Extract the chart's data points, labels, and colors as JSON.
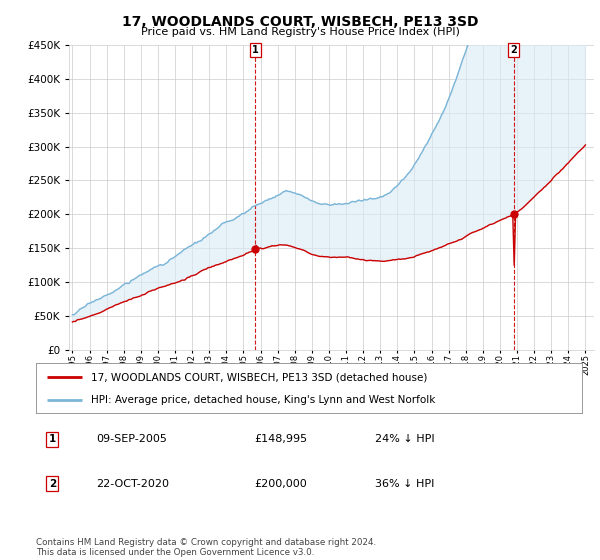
{
  "title": "17, WOODLANDS COURT, WISBECH, PE13 3SD",
  "subtitle": "Price paid vs. HM Land Registry's House Price Index (HPI)",
  "footnote": "Contains HM Land Registry data © Crown copyright and database right 2024.\nThis data is licensed under the Open Government Licence v3.0.",
  "legend_line1": "17, WOODLANDS COURT, WISBECH, PE13 3SD (detached house)",
  "legend_line2": "HPI: Average price, detached house, King's Lynn and West Norfolk",
  "sale1_date": "09-SEP-2005",
  "sale1_price": "£148,995",
  "sale1_hpi": "24% ↓ HPI",
  "sale2_date": "22-OCT-2020",
  "sale2_price": "£200,000",
  "sale2_hpi": "36% ↓ HPI",
  "sale1_year": 2005.7,
  "sale2_year": 2020.8,
  "sale1_price_val": 148995,
  "sale2_price_val": 200000,
  "hpi_color": "#7ab5d8",
  "price_color": "#cc0000",
  "fill_color": "#daeaf5",
  "background_color": "#ffffff",
  "grid_color": "#cccccc",
  "ylim": [
    0,
    450000
  ],
  "xlim_start": 1994.8,
  "xlim_end": 2025.5
}
